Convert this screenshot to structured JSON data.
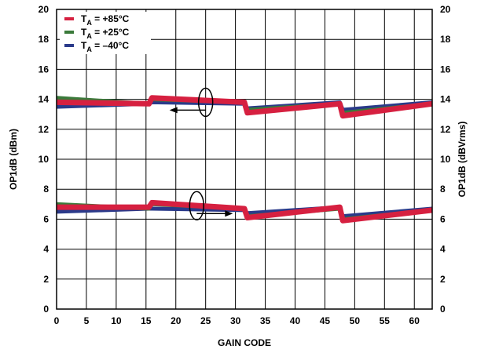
{
  "chart_data": {
    "type": "line",
    "title": "",
    "xlabel": "GAIN CODE",
    "ylabel_left": "OP1dB (dBm)",
    "ylabel_right": "OP1dB (dBVrms)",
    "xlim": [
      0,
      63
    ],
    "ylim_left": [
      0,
      20
    ],
    "ylim_right": [
      0,
      20
    ],
    "xticks": [
      0,
      5,
      10,
      15,
      20,
      25,
      30,
      35,
      40,
      45,
      50,
      55,
      60
    ],
    "yticks_left": [
      0,
      2,
      4,
      6,
      8,
      10,
      12,
      14,
      16,
      18,
      20
    ],
    "yticks_right": [
      0,
      2,
      4,
      6,
      8,
      10,
      12,
      14,
      16,
      18,
      20
    ],
    "grid": true,
    "legend": {
      "placement": "top-left",
      "entries": [
        {
          "prefix": "T",
          "sub": "A",
          "text": " = +85°C",
          "color": "#d62040"
        },
        {
          "prefix": "T",
          "sub": "A",
          "text": " = +25°C",
          "color": "#3a7a3a"
        },
        {
          "prefix": "T",
          "sub": "A",
          "text": " = –40°C",
          "color": "#2a3a8a"
        }
      ]
    },
    "series": [
      {
        "group": "dBm",
        "axis": "left",
        "temp": "-40",
        "color": "#2a3a8a",
        "width": 5,
        "x": [
          0,
          15.5,
          16,
          31.5,
          32,
          47.5,
          48,
          63
        ],
        "y": [
          13.5,
          13.7,
          13.8,
          13.7,
          13.4,
          13.8,
          13.3,
          13.8
        ]
      },
      {
        "group": "dBm",
        "axis": "left",
        "temp": "+25",
        "color": "#3a7a3a",
        "width": 5,
        "x": [
          0,
          15.5,
          16,
          31.5,
          32,
          47.5,
          48,
          63
        ],
        "y": [
          14.1,
          13.7,
          14.0,
          13.8,
          13.3,
          13.7,
          13.1,
          13.7
        ]
      },
      {
        "group": "dBm",
        "axis": "left",
        "temp": "+85",
        "color": "#d62040",
        "width": 7,
        "x": [
          0,
          15.5,
          16,
          31.5,
          32,
          47.5,
          48,
          63
        ],
        "y": [
          13.8,
          13.7,
          14.1,
          13.8,
          13.1,
          13.7,
          12.9,
          13.7
        ]
      },
      {
        "group": "dBVrms",
        "axis": "right",
        "temp": "-40",
        "color": "#2a3a8a",
        "width": 5,
        "x": [
          0,
          15.5,
          16,
          31.5,
          32,
          47.5,
          48,
          63
        ],
        "y": [
          6.5,
          6.7,
          6.7,
          6.6,
          6.4,
          6.8,
          6.2,
          6.7
        ]
      },
      {
        "group": "dBVrms",
        "axis": "right",
        "temp": "+25",
        "color": "#3a7a3a",
        "width": 5,
        "x": [
          0,
          15.5,
          16,
          31.5,
          32,
          47.5,
          48,
          63
        ],
        "y": [
          7.0,
          6.7,
          7.0,
          6.7,
          6.2,
          6.7,
          6.0,
          6.6
        ]
      },
      {
        "group": "dBVrms",
        "axis": "right",
        "temp": "+85",
        "color": "#d62040",
        "width": 7,
        "x": [
          0,
          15.5,
          16,
          31.5,
          32,
          47.5,
          48,
          63
        ],
        "y": [
          6.8,
          6.8,
          7.1,
          6.7,
          6.1,
          6.8,
          5.9,
          6.6
        ]
      }
    ],
    "annotations": [
      {
        "type": "ellipse-arrow",
        "points_to": "left-axis",
        "x": 25,
        "y": 13.8
      },
      {
        "type": "ellipse-arrow",
        "points_to": "right-axis",
        "x": 23.5,
        "y": 6.9
      }
    ]
  }
}
